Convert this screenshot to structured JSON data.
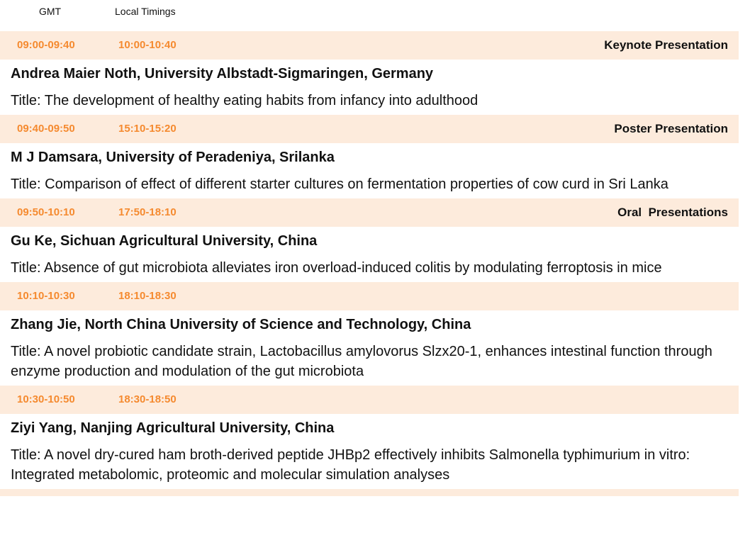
{
  "header": {
    "gmt": "GMT",
    "local": "Local Timings"
  },
  "colors": {
    "accent": "#f58a2f",
    "band": "#fdebdc"
  },
  "sessions": [
    {
      "gmt": "09:00-09:40",
      "local": "10:00-10:40",
      "type": "Keynote Presentation",
      "speaker": "Andrea Maier Noth, University Albstadt-Sigmaringen, Germany",
      "title": "Title: The development of healthy eating habits from infancy into adulthood"
    },
    {
      "gmt": "09:40-09:50",
      "local": "15:10-15:20",
      "type": "Poster Presentation",
      "speaker": "M J Damsara, University of Peradeniya, Srilanka",
      "title": "Title: Comparison of effect of different starter cultures on fermentation properties of cow curd in Sri Lanka"
    },
    {
      "gmt": "09:50-10:10",
      "local": "17:50-18:10",
      "type": "Oral  Presentations",
      "speaker": "Gu Ke, Sichuan Agricultural University, China",
      "title": "Title: Absence of gut microbiota alleviates iron overload-induced colitis by modulating ferroptosis in mice"
    },
    {
      "gmt": "10:10-10:30",
      "local": "18:10-18:30",
      "type": "",
      "speaker": "Zhang Jie, North China University of Science and Technology, China",
      "title": "Title: A novel probiotic candidate strain, Lactobacillus amylovorus Slzx20-1, enhances intestinal function through enzyme production and modulation of the gut microbiota"
    },
    {
      "gmt": "10:30-10:50",
      "local": "18:30-18:50",
      "type": "",
      "speaker": "Ziyi Yang, Nanjing Agricultural University, China",
      "title": "Title: A novel dry-cured ham broth-derived peptide JHBp2 effectively inhibits Salmonella typhimurium in vitro: Integrated metabolomic, proteomic and molecular simulation analyses"
    }
  ]
}
